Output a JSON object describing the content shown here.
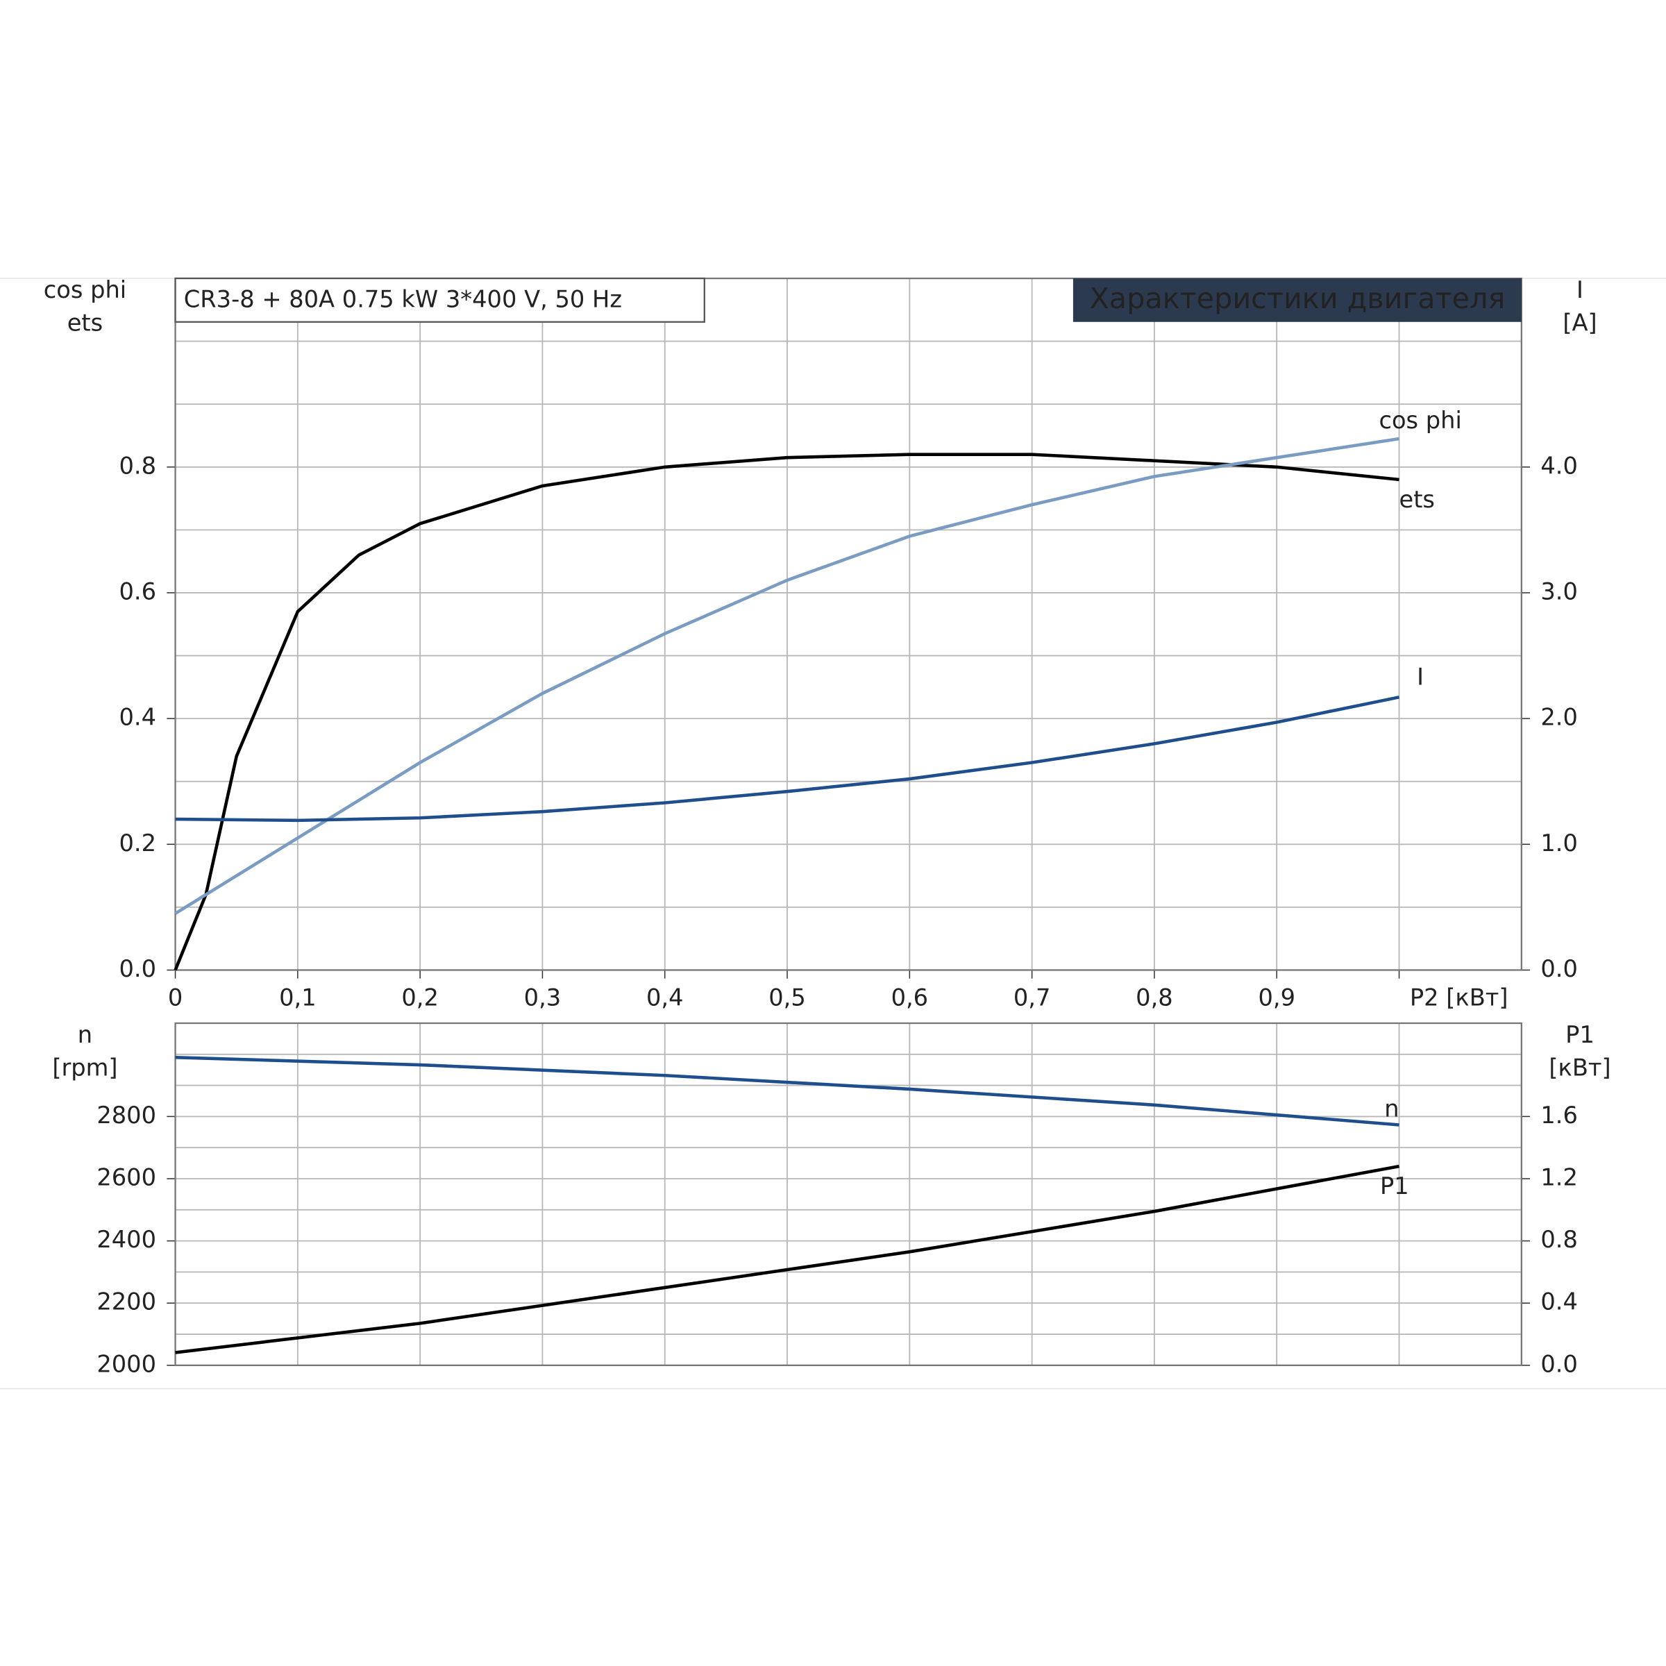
{
  "chart_data": [
    {
      "type": "line",
      "title": "CR3-8 + 80A   0.75 kW   3*400 V, 50 Hz",
      "subtitle": "Характеристики двигателя",
      "ylabel": [
        "cos phi",
        "ets"
      ],
      "y2label": [
        "I",
        "[A]"
      ],
      "xlim": [
        0,
        1.1
      ],
      "xticks": [
        0,
        {
          "value": 0.1,
          "label": "0,1"
        },
        {
          "value": 0.2,
          "label": "0,2"
        },
        {
          "value": 0.3,
          "label": "0,3"
        },
        {
          "value": 0.4,
          "label": "0,4"
        },
        {
          "value": 0.5,
          "label": "0,5"
        },
        {
          "value": 0.6,
          "label": "0,6"
        },
        {
          "value": 0.7,
          "label": "0,7"
        },
        {
          "value": 0.8,
          "label": "0,8"
        },
        {
          "value": 0.9,
          "label": "0,9"
        },
        {
          "value": 1.0,
          "label": "P2 [кВт]"
        }
      ],
      "ylim": [
        0,
        1.1
      ],
      "yticks": [
        {
          "value": 0,
          "label": "0.0"
        },
        0.2,
        0.4,
        0.6,
        0.8
      ],
      "ygrid": [
        0.1,
        0.3,
        0.5,
        0.7,
        0.9,
        1.0,
        1.1
      ],
      "y2lim": [
        0,
        5.5
      ],
      "y2ticks": [
        {
          "value": 0,
          "label": "0.0"
        },
        {
          "value": 1,
          "label": "1.0"
        },
        {
          "value": 2,
          "label": "2.0"
        },
        {
          "value": 3,
          "label": "3.0"
        },
        {
          "value": 4,
          "label": "4.0"
        }
      ],
      "grid": true,
      "series": [
        {
          "name": "ets",
          "color": "#000000",
          "x": [
            0,
            0.025,
            0.05,
            0.1,
            0.15,
            0.2,
            0.3,
            0.4,
            0.5,
            0.6,
            0.7,
            0.8,
            0.9,
            1.0
          ],
          "values": [
            0,
            0.12,
            0.34,
            0.57,
            0.66,
            0.71,
            0.77,
            0.8,
            0.815,
            0.82,
            0.82,
            0.81,
            0.8,
            0.78
          ]
        },
        {
          "name": "cos phi",
          "color": "#7a9cc2",
          "x": [
            0,
            0.1,
            0.2,
            0.3,
            0.4,
            0.5,
            0.6,
            0.7,
            0.8,
            0.9,
            1.0
          ],
          "values": [
            0.09,
            0.21,
            0.33,
            0.44,
            0.535,
            0.62,
            0.69,
            0.74,
            0.785,
            0.815,
            0.845
          ]
        },
        {
          "name": "I",
          "color": "#1f4e8c",
          "axis": "y2",
          "x": [
            0,
            0.1,
            0.2,
            0.3,
            0.4,
            0.5,
            0.6,
            0.7,
            0.8,
            0.9,
            1.0
          ],
          "values": [
            1.2,
            1.19,
            1.21,
            1.26,
            1.33,
            1.42,
            1.52,
            1.65,
            1.8,
            1.97,
            2.17
          ]
        }
      ]
    },
    {
      "type": "line",
      "ylabel": [
        "n",
        "[rpm]"
      ],
      "y2label": [
        "P1",
        "[кВт]"
      ],
      "xlim": [
        0,
        1.1
      ],
      "xgrid": [
        0.1,
        0.2,
        0.3,
        0.4,
        0.5,
        0.6,
        0.7,
        0.8,
        0.9,
        1.0
      ],
      "ylim": [
        2000,
        3100
      ],
      "yticks": [
        2000,
        2200,
        2400,
        2600,
        2800
      ],
      "ygrid": [
        2100,
        2300,
        2500,
        2700,
        2900,
        3000
      ],
      "y2lim": [
        0,
        2.2
      ],
      "y2ticks": [
        {
          "value": 0,
          "label": "0.0"
        },
        0.4,
        0.8,
        1.2,
        1.6
      ],
      "grid": true,
      "series": [
        {
          "name": "n",
          "color": "#1f4e8c",
          "x": [
            0,
            0.2,
            0.4,
            0.6,
            0.8,
            1.0
          ],
          "values": [
            2990,
            2966,
            2932,
            2888,
            2837,
            2773
          ]
        },
        {
          "name": "P1",
          "color": "#000000",
          "axis": "y2",
          "x": [
            0,
            0.2,
            0.4,
            0.6,
            0.8,
            1.0
          ],
          "values": [
            0.082,
            0.27,
            0.5,
            0.73,
            0.99,
            1.28
          ]
        }
      ]
    }
  ]
}
